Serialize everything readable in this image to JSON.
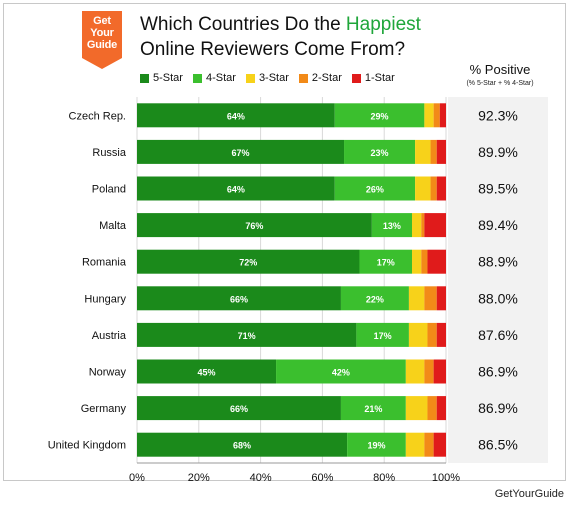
{
  "logo": {
    "text": [
      "Get",
      "Your",
      "Guide"
    ],
    "color": "#f26a2a"
  },
  "title": {
    "line1_before": "Which Countries  Do the ",
    "line1_highlight": "Happiest",
    "line2": "Online Reviewers Come From?"
  },
  "positive_header": {
    "title": "% Positive",
    "subtitle": "(% 5-Star + % 4-Star)"
  },
  "footer": "GetYourGuide",
  "chart_data": {
    "type": "bar",
    "orientation": "horizontal",
    "stacked": true,
    "categories": [
      "Czech Rep.",
      "Russia",
      "Poland",
      "Malta",
      "Romania",
      "Hungary",
      "Austria",
      "Norway",
      "Germany",
      "United Kingdom"
    ],
    "series": [
      {
        "name": "5-Star",
        "color": "#1b8a1b",
        "values": [
          64,
          67,
          64,
          76,
          72,
          66,
          71,
          45,
          66,
          68
        ]
      },
      {
        "name": "4-Star",
        "color": "#3bbf2e",
        "values": [
          29,
          23,
          26,
          13,
          17,
          22,
          17,
          42,
          21,
          19
        ]
      },
      {
        "name": "3-Star",
        "color": "#f7d21a",
        "values": [
          3,
          5,
          5,
          3,
          3,
          5,
          6,
          6,
          7,
          6
        ]
      },
      {
        "name": "2-Star",
        "color": "#f28a18",
        "values": [
          2,
          2,
          2,
          1,
          2,
          4,
          3,
          3,
          3,
          3
        ]
      },
      {
        "name": "1-Star",
        "color": "#e01b1b",
        "values": [
          2,
          3,
          3,
          7,
          6,
          3,
          3,
          4,
          3,
          4
        ]
      }
    ],
    "labels_shown_for": [
      "5-Star",
      "4-Star"
    ],
    "percent_positive": [
      "92.3%",
      "89.9%",
      "89.5%",
      "89.4%",
      "88.9%",
      "88.0%",
      "87.6%",
      "86.9%",
      "86.9%",
      "86.5%"
    ],
    "xlim": [
      0,
      100
    ],
    "xticks": [
      "0%",
      "20%",
      "40%",
      "60%",
      "80%",
      "100%"
    ],
    "grid": true,
    "legend_position": "top"
  }
}
